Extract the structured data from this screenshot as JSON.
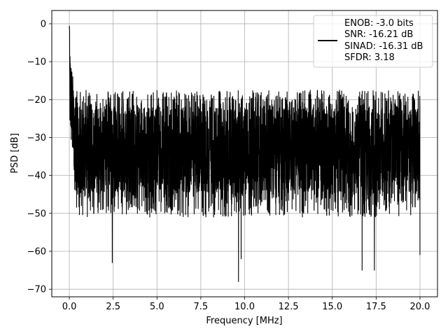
{
  "chart_data": {
    "type": "line",
    "xlabel": "Frequency [MHz]",
    "ylabel": "PSD [dB]",
    "xlim": [
      -1.0,
      21.0
    ],
    "ylim": [
      -72,
      3.5
    ],
    "xticks": [
      0.0,
      2.5,
      5.0,
      7.5,
      10.0,
      12.5,
      15.0,
      17.5,
      20.0
    ],
    "xtick_labels": [
      "0.0",
      "2.5",
      "5.0",
      "7.5",
      "10.0",
      "12.5",
      "15.0",
      "17.5",
      "20.0"
    ],
    "yticks": [
      0,
      -10,
      -20,
      -30,
      -40,
      -50,
      -60,
      -70
    ],
    "ytick_labels": [
      "0",
      "−10",
      "−20",
      "−30",
      "−40",
      "−50",
      "−60",
      "−70"
    ],
    "grid": true,
    "legend_position": "top-right",
    "line_color": "#000000",
    "series": [
      {
        "legend_lines": [
          "ENOB: -3.0 bits",
          "SNR: -16.21 dB",
          "SINAD: -16.31 dB",
          "SFDR: 3.18"
        ],
        "x_start": 0.0,
        "x_end": 20.0,
        "peak_db": 0,
        "upper_envelope_db": -20,
        "median_db": -30,
        "lower_envelope_db": -45,
        "deep_dips": [
          {
            "x": 2.45,
            "y": -63
          },
          {
            "x": 9.65,
            "y": -68
          },
          {
            "x": 9.8,
            "y": -62
          },
          {
            "x": 16.7,
            "y": -65
          },
          {
            "x": 17.4,
            "y": -65
          },
          {
            "x": 20.0,
            "y": -61
          }
        ]
      }
    ]
  }
}
